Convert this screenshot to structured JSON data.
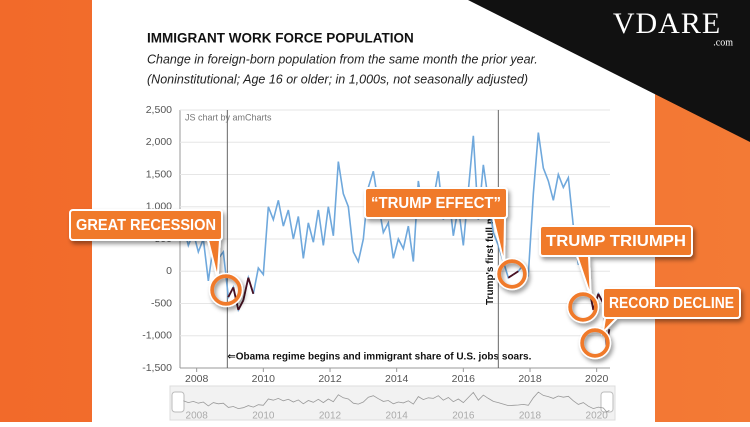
{
  "logo": {
    "name": "VDARE",
    "suffix": ".com"
  },
  "chart_data": {
    "type": "line",
    "title": "IMMIGRANT WORK FORCE POPULATION",
    "subtitle": "Change in foreign-born population from the same month the prior year.",
    "note": "(Noninstitutional; Age 16 or older; in 1,000s, not seasonally adjusted)",
    "credit": "JS chart by amCharts",
    "xlim": [
      2007.5,
      2020.4
    ],
    "xticks": [
      2008,
      2010,
      2012,
      2014,
      2016,
      2018,
      2020
    ],
    "ylim": [
      -1500,
      2500
    ],
    "yticks": [
      {
        "value": -1500,
        "label": "-1,500"
      },
      {
        "value": -1000,
        "label": "-1,000"
      },
      -500,
      0,
      500,
      {
        "value": 1000,
        "label": "1,000"
      },
      {
        "value": 1500,
        "label": "1,500"
      },
      {
        "value": 2000,
        "label": "2,000"
      },
      {
        "value": 2500,
        "label": "2,500"
      }
    ],
    "grid": true,
    "x": [
      2007.6,
      2007.75,
      2007.9,
      2008.05,
      2008.2,
      2008.35,
      2008.5,
      2008.65,
      2008.8,
      2008.95,
      2009.1,
      2009.25,
      2009.4,
      2009.55,
      2009.7,
      2009.85,
      2010.0,
      2010.15,
      2010.3,
      2010.45,
      2010.6,
      2010.75,
      2010.9,
      2011.05,
      2011.2,
      2011.35,
      2011.5,
      2011.65,
      2011.8,
      2011.95,
      2012.1,
      2012.25,
      2012.4,
      2012.55,
      2012.7,
      2012.85,
      2013.0,
      2013.15,
      2013.3,
      2013.45,
      2013.6,
      2013.75,
      2013.9,
      2014.05,
      2014.2,
      2014.35,
      2014.5,
      2014.65,
      2014.8,
      2014.95,
      2015.1,
      2015.25,
      2015.4,
      2015.55,
      2015.7,
      2015.85,
      2016.0,
      2016.15,
      2016.3,
      2016.45,
      2016.6,
      2016.75,
      2016.9,
      2017.05,
      2017.2,
      2017.35,
      2017.5,
      2017.65,
      2017.8,
      2017.95,
      2018.1,
      2018.25,
      2018.4,
      2018.55,
      2018.7,
      2018.85,
      2019.0,
      2019.15,
      2019.3,
      2019.45,
      2019.6,
      2019.75,
      2019.9,
      2020.05,
      2020.2,
      2020.3,
      2020.38
    ],
    "series": [
      {
        "color": "#6fa8dc",
        "negative_color": "#4a1020",
        "values": [
          700,
          400,
          600,
          300,
          500,
          -150,
          400,
          200,
          300,
          -400,
          -250,
          -600,
          -450,
          -100,
          -350,
          50,
          -50,
          1000,
          800,
          1100,
          700,
          950,
          500,
          850,
          200,
          750,
          450,
          950,
          400,
          1000,
          550,
          1700,
          1200,
          1000,
          300,
          150,
          500,
          1300,
          1550,
          1050,
          600,
          750,
          200,
          500,
          350,
          700,
          150,
          1400,
          900,
          1200,
          1100,
          1550,
          800,
          1250,
          550,
          1000,
          400,
          1250,
          2100,
          800,
          1650,
          1100,
          600,
          400,
          150,
          -100,
          -50,
          0,
          100,
          -50,
          1200,
          2150,
          1600,
          1400,
          1100,
          1500,
          1300,
          1450,
          700,
          100,
          400,
          -200,
          -600,
          -350,
          -500,
          -1150,
          -900
        ]
      }
    ],
    "events": [
      {
        "x": 2008.92,
        "label": "⇐Obama regime begins and immigrant share of U.S. jobs soars."
      },
      {
        "x": 2017.05,
        "label": "Trump's first full m"
      }
    ],
    "callouts": [
      "GREAT RECESSION",
      "“TRUMP EFFECT”",
      "TRUMP TRIUMPH",
      "RECORD DECLINE"
    ],
    "callout_color": "#f07a2c"
  }
}
